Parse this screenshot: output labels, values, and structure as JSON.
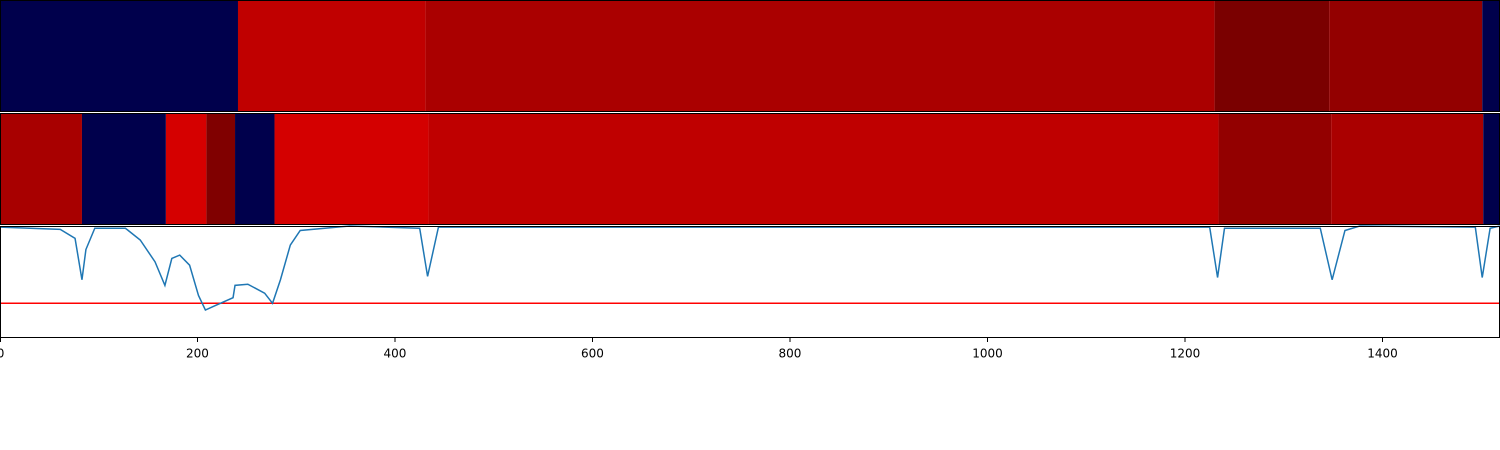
{
  "chart_data": [
    {
      "type": "segments",
      "xlim": [
        0,
        1519
      ],
      "bounds": [
        0,
        241,
        431,
        1230,
        1346,
        1501,
        1519
      ],
      "colors": [
        "#00004c",
        "#c00000",
        "#aa0000",
        "#7a0000",
        "#930000",
        "#00004c"
      ]
    },
    {
      "type": "segments",
      "xlim": [
        0,
        1519
      ],
      "bounds": [
        0,
        83,
        168,
        209,
        238,
        278,
        434,
        1234,
        1348,
        1502,
        1519
      ],
      "colors": [
        "#a80000",
        "#00004c",
        "#d50000",
        "#800000",
        "#00004c",
        "#d40000",
        "#bf0000",
        "#930000",
        "#aa0000",
        "#00004c"
      ]
    },
    {
      "type": "line",
      "xlim": [
        0,
        1519
      ],
      "ylim": [
        0,
        1
      ],
      "color": "#1f77b4",
      "threshold": 0.31,
      "threshold_color": "#ff0000",
      "xticks": [
        0,
        200,
        400,
        600,
        800,
        1000,
        1200,
        1400
      ],
      "x": [
        0,
        61,
        76,
        83,
        87,
        96,
        127,
        142,
        157,
        167,
        174,
        182,
        192,
        201,
        208,
        218,
        236,
        238,
        251,
        268,
        276,
        284,
        294,
        304,
        354,
        425,
        433,
        444,
        1225,
        1233,
        1240,
        1337,
        1349,
        1362,
        1377,
        1494,
        1501,
        1509,
        1519
      ],
      "values": [
        0.99,
        0.97,
        0.89,
        0.52,
        0.79,
        0.98,
        0.98,
        0.875,
        0.68,
        0.47,
        0.71,
        0.74,
        0.65,
        0.38,
        0.25,
        0.29,
        0.36,
        0.47,
        0.48,
        0.4,
        0.31,
        0.52,
        0.83,
        0.96,
        1.0,
        0.98,
        0.55,
        0.99,
        0.99,
        0.54,
        0.98,
        0.98,
        0.52,
        0.96,
        1.0,
        0.99,
        0.54,
        0.98,
        1.0
      ]
    }
  ]
}
